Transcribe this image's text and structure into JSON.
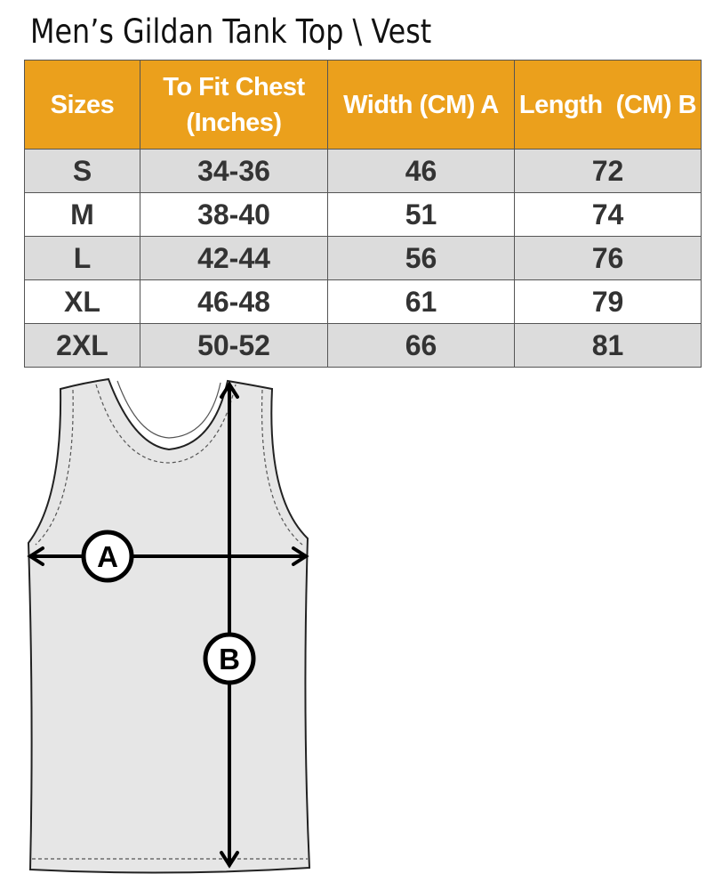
{
  "title": "Men’s Gildan Tank Top \\ Vest",
  "table": {
    "headers": [
      "Sizes",
      "To Fit Chest (Inches)",
      "Width (CM) A",
      "Length  (CM) B"
    ],
    "header_color": "#eba01c",
    "rows": [
      [
        "S",
        "34-36",
        "46",
        "72"
      ],
      [
        "M",
        "38-40",
        "51",
        "74"
      ],
      [
        "L",
        "42-44",
        "56",
        "76"
      ],
      [
        "XL",
        "46-48",
        "61",
        "79"
      ],
      [
        "2XL",
        "50-52",
        "66",
        "81"
      ]
    ]
  },
  "diagram": {
    "label_a": "A",
    "label_b": "B"
  }
}
